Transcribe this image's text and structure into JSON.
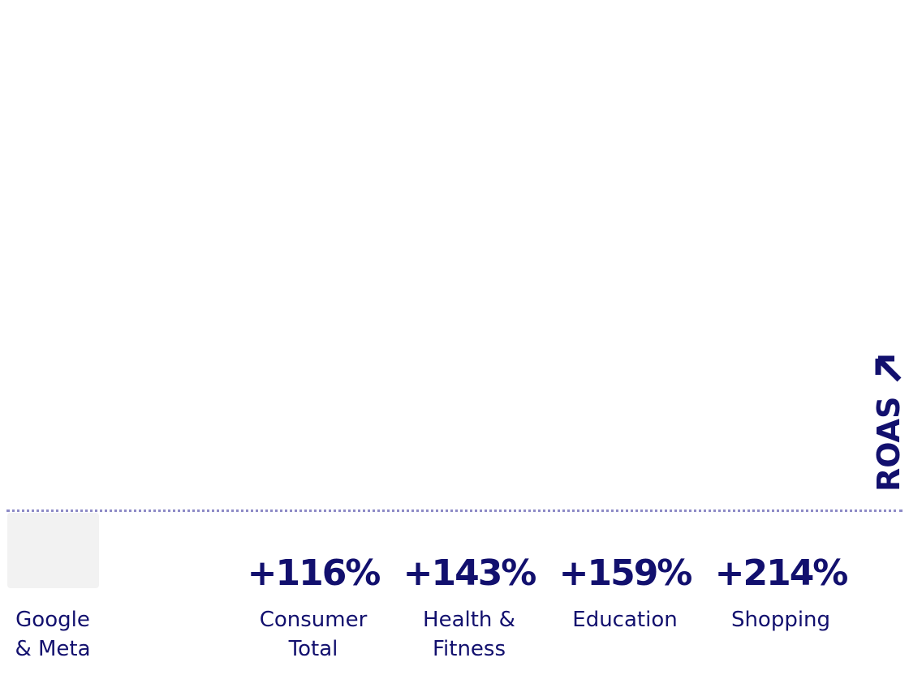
{
  "chart_data": {
    "type": "bar",
    "y_label": "ROAS",
    "categories": [
      "Google & Meta",
      "Consumer Total",
      "Health & Fitness",
      "Education",
      "Shopping"
    ],
    "values": [
      null,
      116,
      143,
      159,
      214
    ],
    "value_labels": [
      null,
      "+116%",
      "+143%",
      "+159%",
      "+214%"
    ],
    "color": "#12106e"
  }
}
